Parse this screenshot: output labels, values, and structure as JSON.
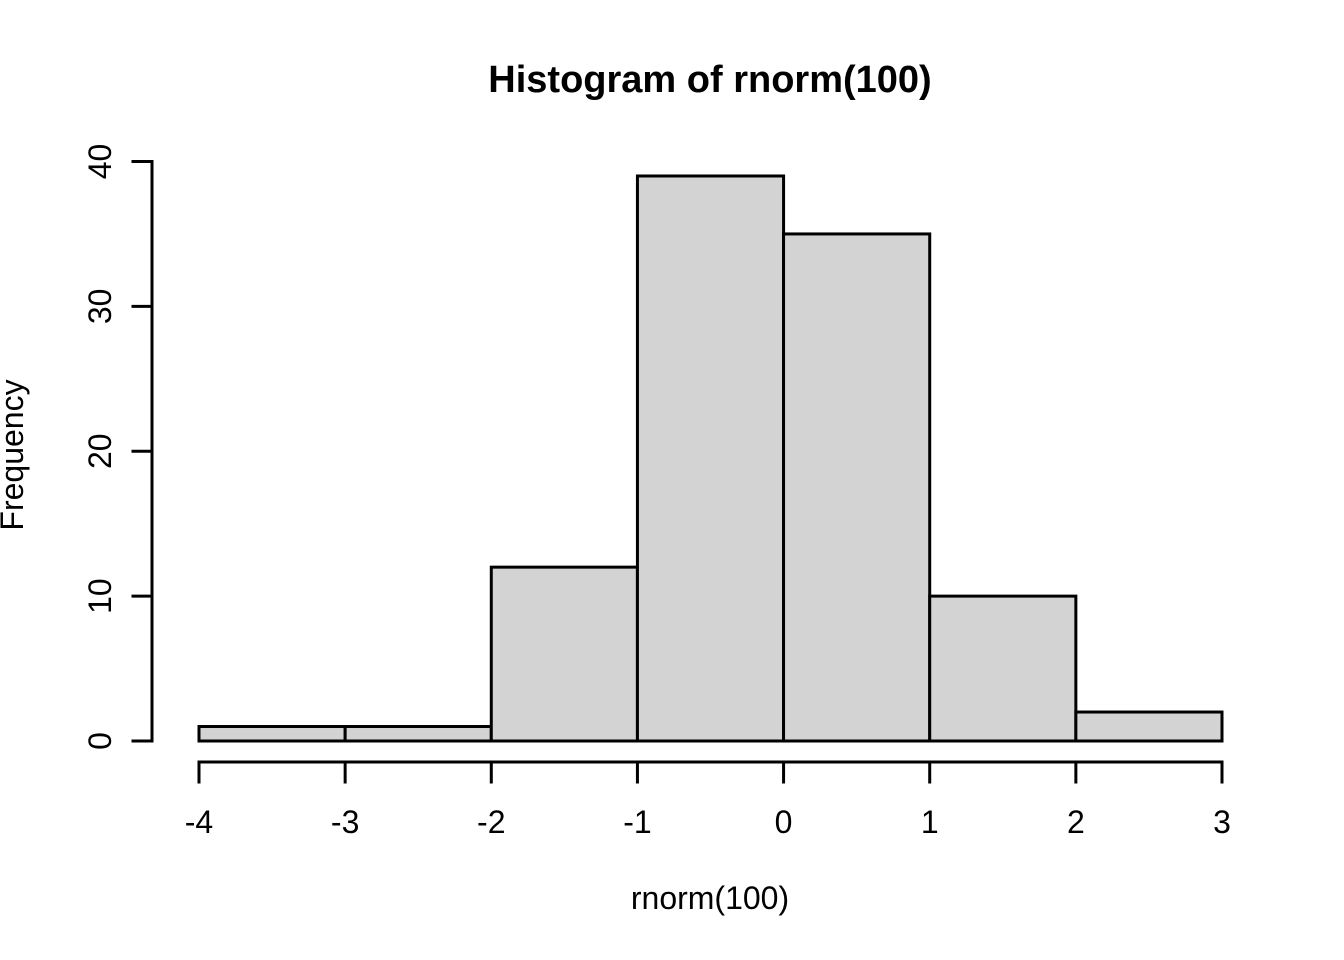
{
  "chart_data": {
    "type": "bar",
    "chart_kind": "histogram",
    "title": "Histogram of rnorm(100)",
    "xlabel": "rnorm(100)",
    "ylabel": "Frequency",
    "bin_edges": [
      -4,
      -3,
      -2,
      -1,
      0,
      1,
      2,
      3
    ],
    "counts": [
      1,
      1,
      12,
      39,
      35,
      10,
      2
    ],
    "x_ticks": [
      -4,
      -3,
      -2,
      -1,
      0,
      1,
      2,
      3
    ],
    "x_tick_labels": [
      "-4",
      "-3",
      "-2",
      "-1",
      "0",
      "1",
      "2",
      "3"
    ],
    "y_ticks": [
      0,
      10,
      20,
      30,
      40
    ],
    "y_tick_labels": [
      "0",
      "10",
      "20",
      "30",
      "40"
    ],
    "xlim": [
      -4,
      3
    ],
    "ylim": [
      0,
      40
    ],
    "grid": false,
    "colors": {
      "bar_fill": "#d3d3d3",
      "bar_stroke": "#000000",
      "axis": "#000000",
      "text": "#000000",
      "background": "#ffffff"
    }
  }
}
